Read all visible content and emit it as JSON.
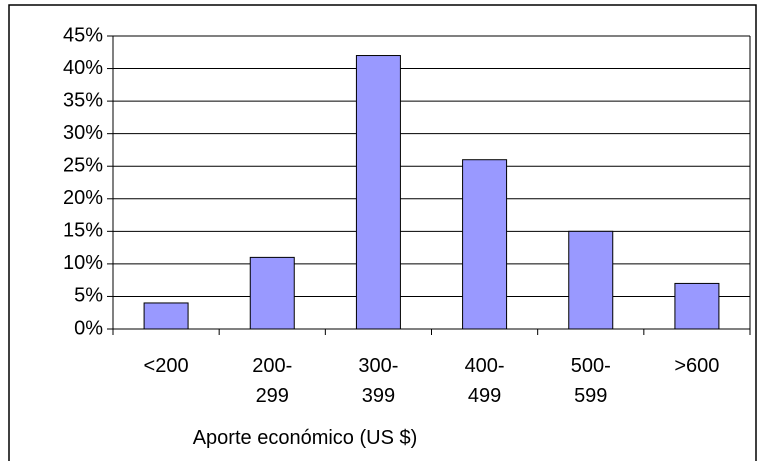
{
  "chart_data": {
    "type": "bar",
    "x_label": "Aporte económico (US $)",
    "categories": [
      "<200",
      "200-\n299",
      "300-\n399",
      "400-\n499",
      "500-\n599",
      ">600"
    ],
    "values": [
      4,
      11,
      42,
      26,
      15,
      7
    ],
    "color": "#9999ff",
    "ylim": [
      0,
      45
    ],
    "yticks": [
      {
        "value": 0,
        "label": "0%"
      },
      {
        "value": 5,
        "label": "5%"
      },
      {
        "value": 10,
        "label": "10%"
      },
      {
        "value": 15,
        "label": "15%"
      },
      {
        "value": 20,
        "label": "20%"
      },
      {
        "value": 25,
        "label": "25%"
      },
      {
        "value": 30,
        "label": "30%"
      },
      {
        "value": 35,
        "label": "35%"
      },
      {
        "value": 40,
        "label": "40%"
      },
      {
        "value": 45,
        "label": "45%"
      }
    ],
    "grid": true
  }
}
